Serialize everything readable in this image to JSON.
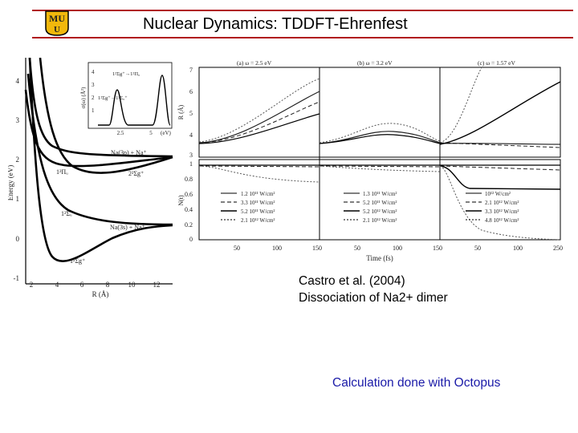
{
  "slide": {
    "title": "Nuclear Dynamics: TDDFT-Ehrenfest",
    "logo_text": "MU",
    "accent_color": "#b0141c",
    "logo_color": "#f2b80c"
  },
  "left_figure": {
    "y_label": "Energy (eV)",
    "x_label": "R (Å)",
    "y_ticks": [
      "4",
      "3",
      "2",
      "1",
      "0",
      "-1"
    ],
    "x_ticks": [
      "2",
      "4",
      "6",
      "8",
      "10",
      "12"
    ],
    "curve_labels": [
      "Na(3p) + Na⁺",
      "1²Πᵤ",
      "2²Σg⁺",
      "1²Σᵤ⁺",
      "Na(3s) + Na⁺",
      "1²Σg⁺"
    ],
    "inset": {
      "y_label": "σ(ω) (Å²)",
      "x_label": "(eV)",
      "y_ticks": [
        "4",
        "3",
        "2",
        "1"
      ],
      "x_ticks": [
        "2.5",
        "5"
      ],
      "peak_labels": [
        "1²Σg⁺→1²Πᵤ",
        "1²Σg⁺→1²Σᵤ⁺"
      ]
    }
  },
  "right_figure": {
    "panel_titles": [
      "(a) ω = 2.5 eV",
      "(b) ω = 3.2 eV",
      "(c) ω = 1.57 eV"
    ],
    "top_y_label": "R (Å)",
    "top_y_ticks": [
      "7",
      "6",
      "5",
      "4",
      "3"
    ],
    "bottom_y_label": "N(t)",
    "bottom_y_ticks": [
      "1",
      "0.8",
      "0.6",
      "0.4",
      "0.2",
      "0"
    ],
    "x_ticks": [
      "50",
      "100",
      "150"
    ],
    "x_label": "Time (fs)",
    "extra_ticks": [
      "250"
    ],
    "legends": [
      [
        "1.2 10¹¹ W/cm²",
        "3.3 10¹¹ W/cm²",
        "5.2 10¹¹ W/cm²",
        "2.1 10¹² W/cm²"
      ],
      [
        "1.3 10¹¹ W/cm²",
        "5.2 10¹¹ W/cm²",
        "5.2 10¹² W/cm²",
        "2.1 10¹² W/cm²"
      ],
      [
        "10¹² W/cm²",
        "2.1 10¹² W/cm²",
        "3.3 10¹² W/cm²",
        "4.8 10¹² W/cm²"
      ]
    ]
  },
  "citation": {
    "line1": "Castro et al. (2004)",
    "line2": "Dissociation of Na2+ dimer"
  },
  "footer": {
    "note": "Calculation done with Octopus"
  }
}
